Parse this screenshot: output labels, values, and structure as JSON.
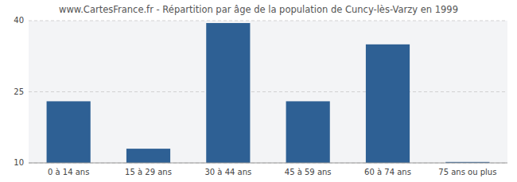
{
  "chart_data": {
    "type": "bar",
    "title": "www.CartesFrance.fr - Répartition par âge de la population de Cuncy-lès-Varzy en 1999",
    "categories": [
      "0 à 14 ans",
      "15 à 29 ans",
      "30 à 44 ans",
      "45 à 59 ans",
      "60 à 74 ans",
      "75 ans ou plus"
    ],
    "values": [
      23,
      13,
      39.5,
      23,
      35,
      10.2
    ],
    "color": "#2e6094",
    "ylim": [
      10,
      40
    ],
    "yticks": [
      10,
      25,
      40
    ],
    "grid": true
  }
}
